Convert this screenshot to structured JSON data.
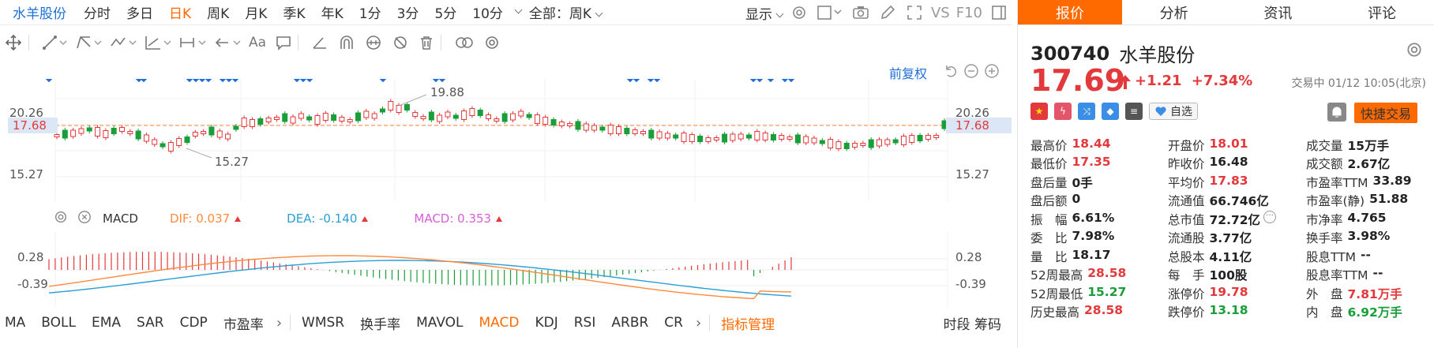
{
  "header": {
    "stock_name": "水羊股份",
    "periods": [
      "分时",
      "多日",
      "日K",
      "周K",
      "月K",
      "季K",
      "年K",
      "1分",
      "3分",
      "5分",
      "10分"
    ],
    "active_period": "日K",
    "range_select": "全部：周K",
    "display_select": "显示",
    "vs_label": "VS",
    "f10_label": "F10"
  },
  "toolbar": {
    "text_tool_label": "Aa"
  },
  "kline": {
    "fuquan_label": "前复权",
    "y_ticks": [
      "20.26",
      "17.68",
      "15.27"
    ],
    "current_price_tag": "17.68",
    "high_annotation": "19.88",
    "low_annotation": "15.27",
    "right_ticks": [
      "20.26",
      "17.68",
      "15.27"
    ]
  },
  "macd": {
    "indicator_name": "MACD",
    "dif_text": "DIF: 0.037",
    "dea_text": "DEA: -0.140",
    "macd_text": "MACD: 0.353",
    "y_ticks": [
      "0.28",
      "-0.39"
    ],
    "right_ticks": [
      "0.28",
      "-0.39"
    ]
  },
  "indicators": {
    "group1": [
      "MA",
      "BOLL",
      "EMA",
      "SAR",
      "CDP",
      "市盈率"
    ],
    "group2": [
      "WMSR",
      "换手率",
      "MAVOL",
      "MACD",
      "KDJ",
      "RSI",
      "ARBR",
      "CR"
    ],
    "active": "MACD",
    "manager": "指标管理",
    "right_labels": "时段 筹码"
  },
  "quote": {
    "tabs": [
      "报价",
      "分析",
      "资讯",
      "评论"
    ],
    "active_tab": "报价",
    "code": "300740",
    "name": "水羊股份",
    "price": "17.69",
    "change": "+1.21",
    "change_pct": "+7.34%",
    "status": "交易中 01/12 10:05(北京)",
    "fav_label": "自选",
    "trade_label": "快捷交易",
    "rows": [
      [
        {
          "label": "最高价",
          "value": "18.44",
          "color": "red"
        },
        {
          "label": "开盘价",
          "value": "18.01",
          "color": "red"
        },
        {
          "label": "成交量",
          "value": "15万手",
          "color": "dark"
        }
      ],
      [
        {
          "label": "最低价",
          "value": "17.35",
          "color": "red"
        },
        {
          "label": "昨收价",
          "value": "16.48",
          "color": "dark"
        },
        {
          "label": "成交额",
          "value": "2.67亿",
          "color": "dark"
        }
      ],
      [
        {
          "label": "盘后量",
          "value": "0手",
          "color": "dark"
        },
        {
          "label": "平均价",
          "value": "17.83",
          "color": "red"
        },
        {
          "label": "市盈率TTM",
          "value": "33.89",
          "color": "dark"
        }
      ],
      [
        {
          "label": "盘后额",
          "value": "0",
          "color": "dark"
        },
        {
          "label": "流通值",
          "value": "66.746亿",
          "color": "dark"
        },
        {
          "label": "市盈率(静)",
          "value": "51.88",
          "color": "dark"
        }
      ],
      [
        {
          "label": "振　幅",
          "value": "6.61%",
          "color": "dark"
        },
        {
          "label": "总市值",
          "value": "72.72亿",
          "color": "dark"
        },
        {
          "label": "市净率",
          "value": "4.765",
          "color": "dark"
        }
      ],
      [
        {
          "label": "委　比",
          "value": "7.98%",
          "color": "dark"
        },
        {
          "label": "流通股",
          "value": "3.77亿",
          "color": "dark"
        },
        {
          "label": "换手率",
          "value": "3.98%",
          "color": "dark"
        }
      ],
      [
        {
          "label": "量　比",
          "value": "18.17",
          "color": "dark"
        },
        {
          "label": "总股本",
          "value": "4.11亿",
          "color": "dark"
        },
        {
          "label": "股息TTM",
          "value": "--",
          "color": "dark"
        }
      ],
      [
        {
          "label": "52周最高",
          "value": "28.58",
          "color": "red"
        },
        {
          "label": "每　手",
          "value": "100股",
          "color": "dark"
        },
        {
          "label": "股息率TTM",
          "value": "--",
          "color": "dark"
        }
      ],
      [
        {
          "label": "52周最低",
          "value": "15.27",
          "color": "green"
        },
        {
          "label": "涨停价",
          "value": "19.78",
          "color": "red"
        },
        {
          "label": "外　盘",
          "value": "7.81万手",
          "color": "red"
        }
      ],
      [
        {
          "label": "历史最高",
          "value": "28.58",
          "color": "red"
        },
        {
          "label": "跌停价",
          "value": "13.18",
          "color": "green"
        },
        {
          "label": "内　盘",
          "value": "6.92万手",
          "color": "green"
        }
      ]
    ]
  },
  "colors": {
    "accent": "#ff6a00",
    "up": "#e4393c",
    "down": "#1a9e3a",
    "link": "#1e6fd9"
  }
}
